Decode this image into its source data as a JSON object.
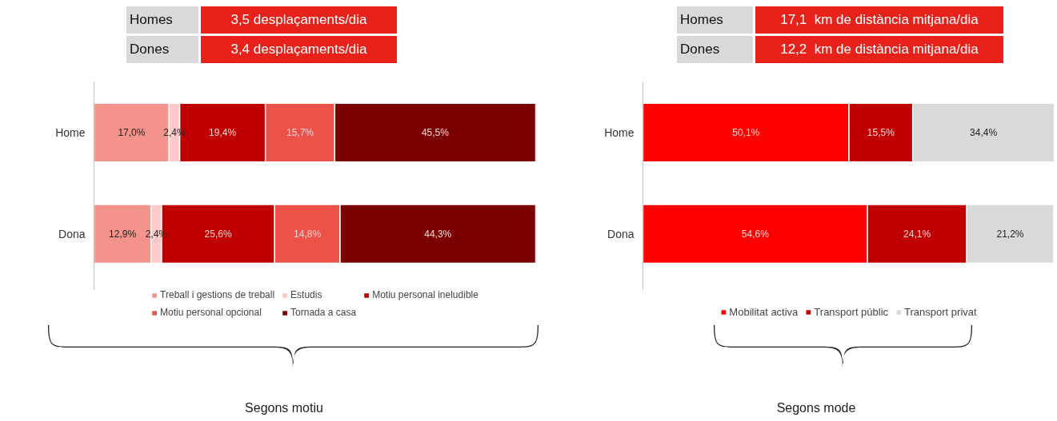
{
  "chart_data": [
    {
      "type": "bar",
      "orientation": "horizontal",
      "stacked": true,
      "title": "Segons motiu",
      "annotations": [
        "Homes",
        "3,5 desplaçaments/dia",
        "Dones",
        "3,4 desplaçaments/dia"
      ],
      "categories": [
        "Home",
        "Dona"
      ],
      "xlim": [
        0,
        100
      ],
      "tick_labels": "y",
      "grid": false,
      "legend": "bottom",
      "series": [
        {
          "name": "Treball i gestions de treball",
          "color": "#f4938b",
          "values": [
            17.0,
            12.9
          ],
          "value_labels": [
            "17,0%",
            "12,9%"
          ]
        },
        {
          "name": "Estudis",
          "color": "#fdc9c9",
          "values": [
            2.4,
            2.4
          ],
          "value_labels": [
            "2,4%",
            "2,4%"
          ]
        },
        {
          "name": "Motiu personal ineludible",
          "color": "#c00000",
          "values": [
            19.4,
            25.6
          ],
          "value_labels": [
            "19,4%",
            "25,6%"
          ]
        },
        {
          "name": "Motiu personal opcional",
          "color": "#ec5248",
          "values": [
            15.7,
            14.8
          ],
          "value_labels": [
            "15,7%",
            "14,8%"
          ]
        },
        {
          "name": "Tornada a casa",
          "color": "#7b0000",
          "values": [
            45.5,
            44.3
          ],
          "value_labels": [
            "45,5%",
            "44,3%"
          ]
        }
      ]
    },
    {
      "type": "bar",
      "orientation": "horizontal",
      "stacked": true,
      "title": "Segons mode",
      "annotations": [
        "Homes",
        "17,1  km de distància mitjana/dia",
        "Dones",
        "12,2  km de distància mitjana/dia"
      ],
      "categories": [
        "Home",
        "Dona"
      ],
      "xlim": [
        0,
        100
      ],
      "tick_labels": "y",
      "grid": false,
      "legend": "bottom",
      "series": [
        {
          "name": "Mobilitat activa",
          "color": "#ff0000",
          "values": [
            50.1,
            54.6
          ],
          "value_labels": [
            "50,1%",
            "54,6%"
          ]
        },
        {
          "name": "Transport públic",
          "color": "#c00000",
          "values": [
            15.5,
            24.1
          ],
          "value_labels": [
            "15,5%",
            "24,1%"
          ]
        },
        {
          "name": "Transport privat",
          "color": "#d9d9d9",
          "values": [
            34.4,
            21.2
          ],
          "value_labels": [
            "34,4%",
            "21,2%"
          ]
        }
      ]
    }
  ]
}
